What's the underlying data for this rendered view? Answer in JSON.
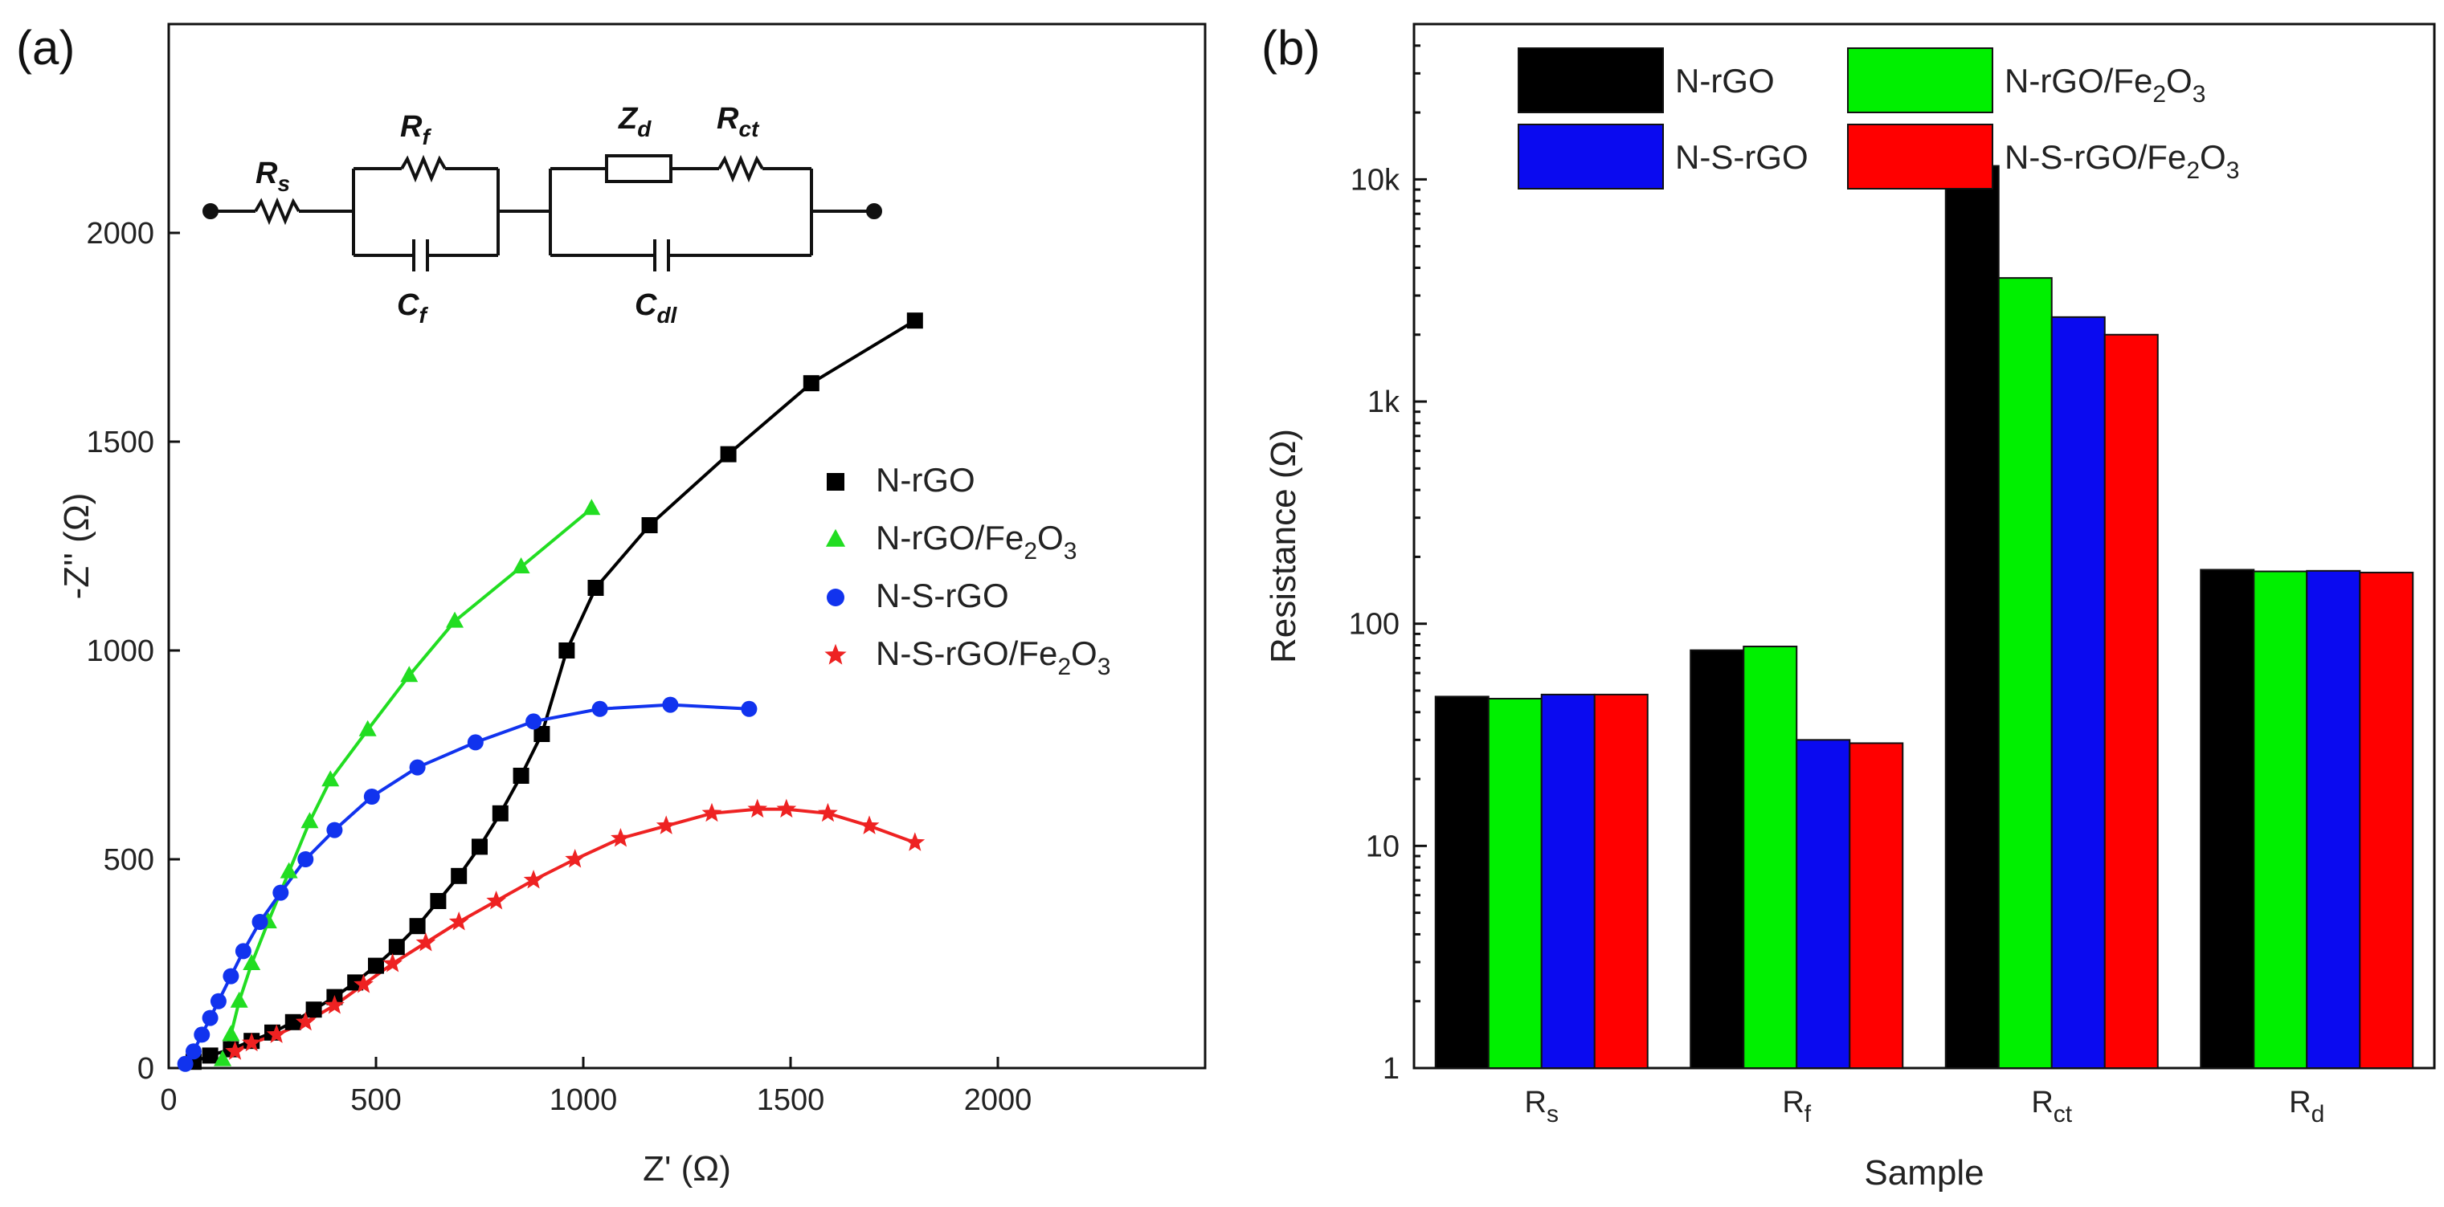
{
  "figure": {
    "panel_a_label": "(a)",
    "panel_b_label": "(b)"
  },
  "circuit": {
    "labels": [
      {
        "name": "Rs",
        "main": "R",
        "sub": "s"
      },
      {
        "name": "Rf",
        "main": "R",
        "sub": "f"
      },
      {
        "name": "Cf",
        "main": "C",
        "sub": "f"
      },
      {
        "name": "Zd",
        "main": "Z",
        "sub": "d"
      },
      {
        "name": "Rct",
        "main": "R",
        "sub": "ct"
      },
      {
        "name": "Cdl",
        "main": "C",
        "sub": "dl"
      }
    ]
  },
  "colors": {
    "N-rGO": "#000000",
    "N-rGO/Fe2O3": "#22dd22",
    "N-S-rGO": "#1133ee",
    "N-S-rGO/Fe2O3": "#ee2222",
    "bar_N-rGO": "#000000",
    "bar_N-rGO/Fe2O3": "#00f000",
    "bar_N-S-rGO": "#0a0af0",
    "bar_N-S-rGO/Fe2O3": "#ff0000"
  },
  "chart_data": [
    {
      "type": "scatter",
      "panel": "(a)",
      "title": "",
      "xlabel": "Z' (Ω)",
      "ylabel": "-Z'' (Ω)",
      "xlim": [
        0,
        2500
      ],
      "ylim": [
        0,
        2500
      ],
      "xticks": [
        0,
        500,
        1000,
        1500,
        2000
      ],
      "yticks": [
        0,
        500,
        1000,
        1500,
        2000
      ],
      "legend_position": "right-middle",
      "series": [
        {
          "name": "N-rGO",
          "legend_main": "N-rGO",
          "legend_sub": "",
          "legend_tail": "",
          "marker": "square",
          "x": [
            60,
            100,
            150,
            200,
            250,
            300,
            350,
            400,
            450,
            500,
            550,
            600,
            650,
            700,
            750,
            800,
            850,
            900,
            960,
            1030,
            1160,
            1350,
            1550,
            1800
          ],
          "y": [
            15,
            30,
            45,
            65,
            85,
            110,
            140,
            170,
            205,
            245,
            290,
            340,
            400,
            460,
            530,
            610,
            700,
            800,
            1000,
            1150,
            1300,
            1470,
            1640,
            1790
          ]
        },
        {
          "name": "N-rGO/Fe2O3",
          "legend_main": "N-rGO/Fe",
          "legend_sub": "2",
          "legend_tail": "O",
          "legend_sub2": "3",
          "marker": "triangle",
          "x": [
            130,
            150,
            170,
            200,
            240,
            290,
            340,
            390,
            480,
            580,
            690,
            850,
            1020
          ],
          "y": [
            20,
            80,
            160,
            250,
            350,
            470,
            590,
            690,
            810,
            940,
            1070,
            1200,
            1340
          ]
        },
        {
          "name": "N-S-rGO",
          "legend_main": "N-S-rGO",
          "legend_sub": "",
          "legend_tail": "",
          "marker": "circle",
          "x": [
            40,
            60,
            80,
            100,
            120,
            150,
            180,
            220,
            270,
            330,
            400,
            490,
            600,
            740,
            880,
            1040,
            1210,
            1400
          ],
          "y": [
            10,
            40,
            80,
            120,
            160,
            220,
            280,
            350,
            420,
            500,
            570,
            650,
            720,
            780,
            830,
            860,
            870,
            860
          ]
        },
        {
          "name": "N-S-rGO/Fe2O3",
          "legend_main": "N-S-rGO/Fe",
          "legend_sub": "2",
          "legend_tail": "O",
          "legend_sub2": "3",
          "marker": "star",
          "x": [
            160,
            200,
            260,
            330,
            400,
            470,
            540,
            620,
            700,
            790,
            880,
            980,
            1090,
            1200,
            1310,
            1420,
            1490,
            1590,
            1690,
            1800
          ],
          "y": [
            40,
            60,
            80,
            110,
            150,
            200,
            250,
            300,
            350,
            400,
            450,
            500,
            550,
            580,
            610,
            620,
            620,
            610,
            580,
            540
          ]
        }
      ]
    },
    {
      "type": "bar",
      "panel": "(b)",
      "title": "",
      "xlabel": "Sample",
      "ylabel": "Resistance (Ω)",
      "yscale": "log",
      "ylim": [
        1,
        50000
      ],
      "yticks": [
        1,
        10,
        100,
        1000,
        10000
      ],
      "ytick_labels": [
        "1",
        "10",
        "100",
        "1k",
        "10k"
      ],
      "legend_position": "top",
      "categories": [
        {
          "main": "R",
          "sub": "s"
        },
        {
          "main": "R",
          "sub": "f"
        },
        {
          "main": "R",
          "sub": "ct"
        },
        {
          "main": "R",
          "sub": "d"
        }
      ],
      "series": [
        {
          "name": "N-rGO",
          "legend_main": "N-rGO",
          "legend_sub": "",
          "legend_tail": "",
          "values": [
            47,
            76,
            11500,
            175
          ]
        },
        {
          "name": "N-rGO/Fe2O3",
          "legend_main": "N-rGO/Fe",
          "legend_sub": "2",
          "legend_tail": "O",
          "legend_sub2": "3",
          "values": [
            46,
            79,
            3600,
            172
          ]
        },
        {
          "name": "N-S-rGO",
          "legend_main": "N-S-rGO",
          "legend_sub": "",
          "legend_tail": "",
          "values": [
            48,
            30,
            2400,
            173
          ]
        },
        {
          "name": "N-S-rGO/Fe2O3",
          "legend_main": "N-S-rGO/Fe",
          "legend_sub": "2",
          "legend_tail": "O",
          "legend_sub2": "3",
          "values": [
            48,
            29,
            2000,
            170
          ]
        }
      ]
    }
  ]
}
